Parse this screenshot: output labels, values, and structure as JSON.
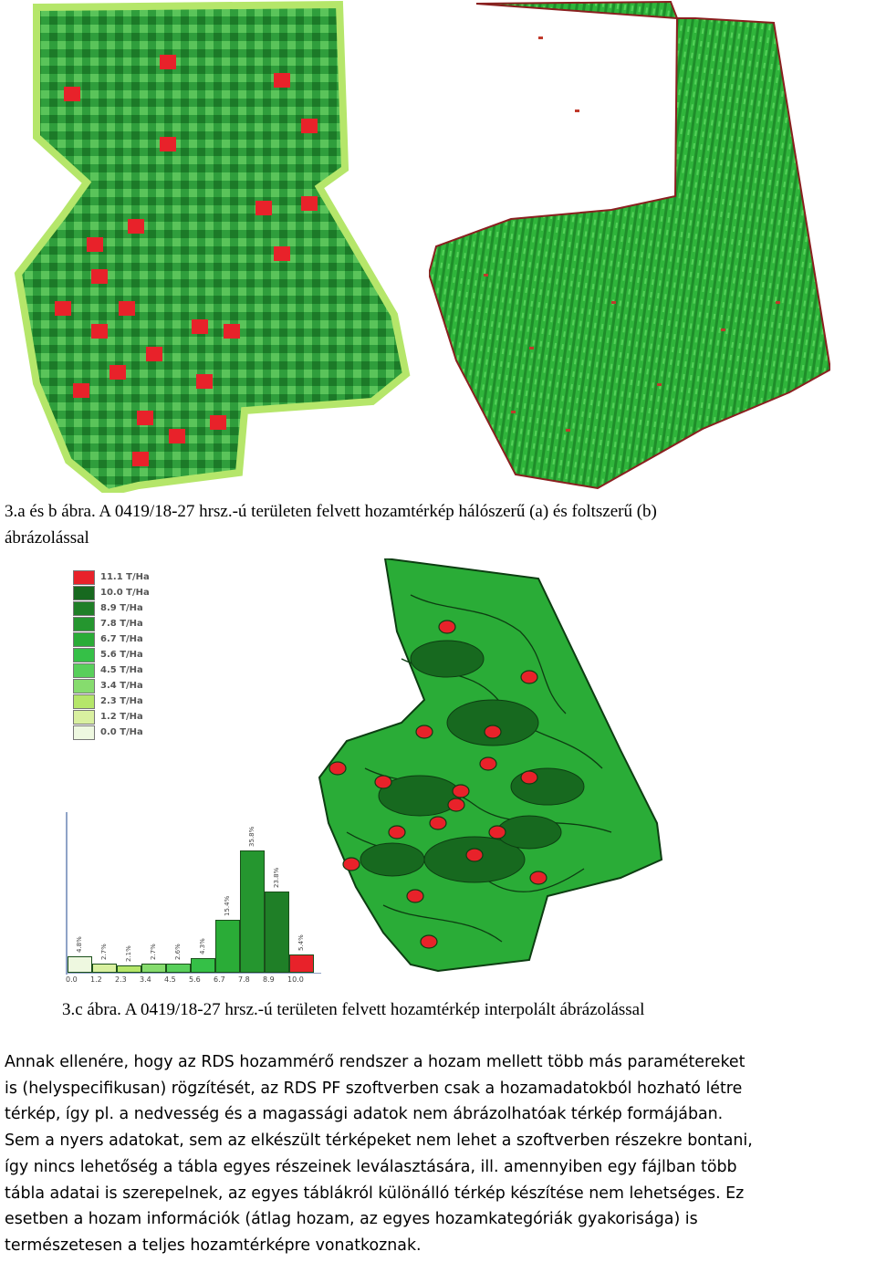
{
  "figures": {
    "ab_caption_line1": "3.a és b ábra. A 0419/18-27 hrsz.-ú területen felvett hozamtérkép hálószerű (a) és foltszerű (b)",
    "ab_caption_line2": "ábrázolással",
    "c_caption": "3.c ábra. A 0419/18-27 hrsz.-ú területen felvett hozamtérkép interpolált ábrázolással"
  },
  "legend": {
    "items": [
      {
        "label": "11.1 T/Ha",
        "color": "#e8222a"
      },
      {
        "label": "10.0 T/Ha",
        "color": "#17691f"
      },
      {
        "label": "8.9 T/Ha",
        "color": "#1f7f27"
      },
      {
        "label": "7.8 T/Ha",
        "color": "#25962f"
      },
      {
        "label": "6.7 T/Ha",
        "color": "#2aac37"
      },
      {
        "label": "5.6 T/Ha",
        "color": "#35c047"
      },
      {
        "label": "4.5 T/Ha",
        "color": "#58cf5b"
      },
      {
        "label": "3.4 T/Ha",
        "color": "#86dc6e"
      },
      {
        "label": "2.3 T/Ha",
        "color": "#b5e66a"
      },
      {
        "label": "1.2 T/Ha",
        "color": "#d9f0a0"
      },
      {
        "label": "0.0 T/Ha",
        "color": "#eef8e0"
      }
    ]
  },
  "chart_data": {
    "type": "bar",
    "categories": [
      "0.0",
      "1.2",
      "2.3",
      "3.4",
      "4.5",
      "5.6",
      "6.7",
      "7.8",
      "8.9",
      "10.0"
    ],
    "values": [
      4.8,
      2.7,
      2.1,
      2.7,
      2.6,
      4.3,
      15.4,
      35.8,
      23.8,
      5.4
    ],
    "value_labels": [
      "4.8%",
      "2.7%",
      "2.1%",
      "2.7%",
      "2.6%",
      "4.3%",
      "15.4%",
      "35.8%",
      "23.8%",
      "5.4%"
    ],
    "bar_colors": [
      "#eef8e0",
      "#d9f0a0",
      "#b5e66a",
      "#86dc6e",
      "#58cf5b",
      "#35c047",
      "#2aac37",
      "#25962f",
      "#1f7f27",
      "#e8222a"
    ],
    "ylim": [
      0,
      40
    ],
    "grid": false
  },
  "body_text": {
    "lines": [
      "Annak ellenére, hogy az RDS hozammérő rendszer a hozam mellett több más paramétereket",
      "is (helyspecifikusan) rögzítését, az RDS PF szoftverben csak a hozamadatokból hozható létre",
      "térkép, így pl. a nedvesség és a magassági adatok nem ábrázolhatóak térkép formájában.",
      "Sem a nyers adatokat, sem az elkészült térképeket nem lehet a szoftverben részekre bontani,",
      "így nincs lehetőség a tábla egyes részeinek leválasztására, ill. amennyiben egy fájlban több",
      "tábla adatai is szerepelnek, az egyes táblákról különálló térkép készítése nem lehetséges. Ez",
      "esetben a hozam információk (átlag hozam, az egyes hozamkategóriák gyakorisága) is",
      "természetesen a teljes hozamtérképre vonatkoznak."
    ]
  }
}
